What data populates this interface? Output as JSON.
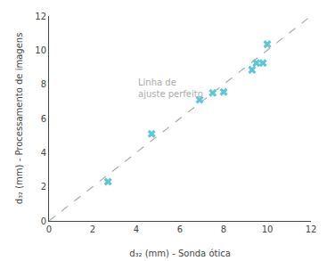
{
  "chart_data": {
    "type": "scatter",
    "xlabel": "d₃₂ (mm) - Sonda ótica",
    "ylabel": "d₃₂ (mm) - Processamento de imagens",
    "series": [
      {
        "type": "scatter",
        "x": [
          2.7,
          4.7,
          6.9,
          7.5,
          8.0,
          9.3,
          9.5,
          9.8,
          10.0
        ],
        "values": [
          2.3,
          5.1,
          7.1,
          7.5,
          7.55,
          8.85,
          9.25,
          9.25,
          10.35
        ],
        "color": "#5bc8d5",
        "marker": "x"
      },
      {
        "type": "line",
        "x": [
          0,
          12
        ],
        "values": [
          0,
          12
        ],
        "color": "#aaaaaa",
        "line_style": "dashed"
      }
    ],
    "annotations": [
      {
        "text": "Linha de\najuste perfeito",
        "x": 4.0,
        "y": 8.5,
        "color": "#aaaaaa"
      }
    ],
    "xlim": [
      0,
      12
    ],
    "ylim": [
      0,
      12
    ],
    "xticks": [
      0,
      2,
      4,
      6,
      8,
      10,
      12
    ],
    "yticks": [
      0,
      2,
      4,
      6,
      8,
      10,
      12
    ],
    "grid": false
  }
}
